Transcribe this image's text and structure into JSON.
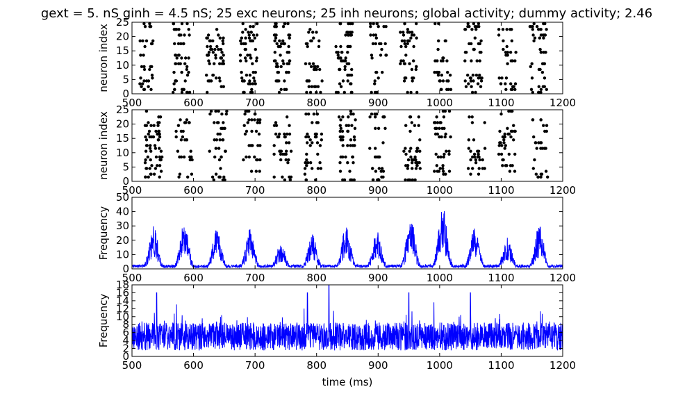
{
  "figure": {
    "title": "gext = 5. nS ginh = 4.5 nS; 25 exc neurons; 25 inh neurons; global activity; dummy activity; 2.46"
  },
  "chart_data": [
    {
      "id": "exc-raster",
      "type": "scatter",
      "ylabel": "neuron index",
      "xlim": [
        500,
        1200
      ],
      "ylim": [
        0,
        25
      ],
      "x_ticks": [
        500,
        600,
        700,
        800,
        900,
        1000,
        1100,
        1200
      ],
      "y_ticks": [
        0,
        5,
        10,
        15,
        20,
        25
      ],
      "marker_color": "#000000",
      "bursts_x": [
        525,
        580,
        635,
        690,
        745,
        795,
        845,
        900,
        950,
        1005,
        1055,
        1110,
        1160
      ],
      "burst_half_width_ms": 14
    },
    {
      "id": "inh-raster",
      "type": "scatter",
      "ylabel": "neuron index",
      "xlim": [
        500,
        1200
      ],
      "ylim": [
        0,
        25
      ],
      "x_ticks": [
        500,
        600,
        700,
        800,
        900,
        1000,
        1100,
        1200
      ],
      "y_ticks": [
        0,
        5,
        10,
        15,
        20,
        25
      ],
      "marker_color": "#000000",
      "bursts_x": [
        535,
        585,
        640,
        695,
        745,
        795,
        850,
        900,
        955,
        1005,
        1060,
        1110,
        1165
      ],
      "burst_half_width_ms": 14
    },
    {
      "id": "global-activity",
      "type": "line",
      "ylabel": "Frequency",
      "xlim": [
        500,
        1200
      ],
      "ylim": [
        0,
        50
      ],
      "x_ticks": [
        500,
        600,
        700,
        800,
        900,
        1000,
        1100,
        1200
      ],
      "y_ticks": [
        0,
        10,
        20,
        30,
        40,
        50
      ],
      "color": "#0000ff",
      "peaks": [
        {
          "x": 535,
          "y": 30
        },
        {
          "x": 585,
          "y": 32
        },
        {
          "x": 638,
          "y": 29
        },
        {
          "x": 692,
          "y": 28
        },
        {
          "x": 742,
          "y": 19
        },
        {
          "x": 793,
          "y": 24
        },
        {
          "x": 848,
          "y": 30
        },
        {
          "x": 898,
          "y": 27
        },
        {
          "x": 953,
          "y": 36
        },
        {
          "x": 1005,
          "y": 45
        },
        {
          "x": 1057,
          "y": 30
        },
        {
          "x": 1110,
          "y": 22
        },
        {
          "x": 1162,
          "y": 31
        }
      ]
    },
    {
      "id": "dummy-activity",
      "type": "line",
      "xlabel": "time (ms)",
      "ylabel": "Frequency",
      "xlim": [
        500,
        1200
      ],
      "ylim": [
        0,
        18
      ],
      "x_ticks": [
        500,
        600,
        700,
        800,
        900,
        1000,
        1100,
        1200
      ],
      "y_ticks": [
        0,
        2,
        4,
        6,
        8,
        10,
        12,
        14,
        16,
        18
      ],
      "color": "#0000ff",
      "spikes": [
        {
          "x": 540,
          "y": 16
        },
        {
          "x": 785,
          "y": 16
        },
        {
          "x": 820,
          "y": 18
        },
        {
          "x": 950,
          "y": 16
        },
        {
          "x": 1050,
          "y": 16
        }
      ]
    }
  ]
}
